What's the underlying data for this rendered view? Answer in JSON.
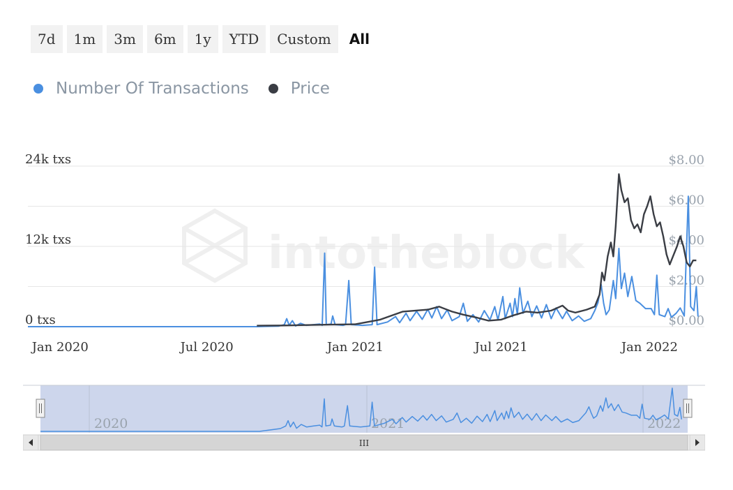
{
  "range_buttons": [
    {
      "label": "7d",
      "active": false
    },
    {
      "label": "1m",
      "active": false
    },
    {
      "label": "3m",
      "active": false
    },
    {
      "label": "6m",
      "active": false
    },
    {
      "label": "1y",
      "active": false
    },
    {
      "label": "YTD",
      "active": false
    },
    {
      "label": "Custom",
      "active": false
    },
    {
      "label": "All",
      "active": true
    }
  ],
  "watermark": "intotheblock",
  "navigator": {
    "year_labels": [
      "2020",
      "2021",
      "2022"
    ],
    "scroll_grip": "III"
  },
  "chart_data": {
    "type": "line",
    "xlabel": "",
    "ylabel": "",
    "x_ticks": [
      "Jan 2020",
      "Jul 2020",
      "Jan 2021",
      "Jul 2021",
      "Jan 2022"
    ],
    "x_range": [
      "2019-11-22",
      "2022-03-10"
    ],
    "y_left_ticks": [
      "0 txs",
      "12k txs",
      "24k txs"
    ],
    "y_left_range": [
      0,
      24000
    ],
    "y_right_ticks": [
      "$0.00",
      "$2.00",
      "$4.00",
      "$6.00",
      "$8.00"
    ],
    "y_right_range": [
      0,
      8
    ],
    "legend_position": "top-left",
    "grid": true,
    "series": [
      {
        "name": "Number Of Transactions",
        "color": "#4a8fe0",
        "axis": "left",
        "points": [
          [
            "2019-11-22",
            0
          ],
          [
            "2020-09-01",
            0
          ],
          [
            "2020-09-28",
            80
          ],
          [
            "2020-10-05",
            300
          ],
          [
            "2020-10-08",
            1200
          ],
          [
            "2020-10-11",
            200
          ],
          [
            "2020-10-15",
            900
          ],
          [
            "2020-10-19",
            100
          ],
          [
            "2020-10-25",
            500
          ],
          [
            "2020-11-01",
            200
          ],
          [
            "2020-11-10",
            300
          ],
          [
            "2020-11-18",
            400
          ],
          [
            "2020-11-21",
            200
          ],
          [
            "2020-11-24",
            11000
          ],
          [
            "2020-11-26",
            300
          ],
          [
            "2020-12-02",
            400
          ],
          [
            "2020-12-04",
            1600
          ],
          [
            "2020-12-07",
            300
          ],
          [
            "2020-12-17",
            200
          ],
          [
            "2020-12-20",
            300
          ],
          [
            "2020-12-24",
            6900
          ],
          [
            "2020-12-27",
            300
          ],
          [
            "2021-01-10",
            200
          ],
          [
            "2021-01-22",
            300
          ],
          [
            "2021-01-25",
            8900
          ],
          [
            "2021-01-28",
            300
          ],
          [
            "2021-02-10",
            700
          ],
          [
            "2021-02-20",
            1500
          ],
          [
            "2021-02-25",
            600
          ],
          [
            "2021-03-05",
            2000
          ],
          [
            "2021-03-10",
            900
          ],
          [
            "2021-03-18",
            2300
          ],
          [
            "2021-03-25",
            1100
          ],
          [
            "2021-04-01",
            2600
          ],
          [
            "2021-04-06",
            1300
          ],
          [
            "2021-04-12",
            3000
          ],
          [
            "2021-04-18",
            1200
          ],
          [
            "2021-04-25",
            2500
          ],
          [
            "2021-05-01",
            900
          ],
          [
            "2021-05-10",
            1500
          ],
          [
            "2021-05-15",
            3500
          ],
          [
            "2021-05-20",
            800
          ],
          [
            "2021-05-27",
            1800
          ],
          [
            "2021-06-03",
            700
          ],
          [
            "2021-06-10",
            2400
          ],
          [
            "2021-06-17",
            1000
          ],
          [
            "2021-06-23",
            3000
          ],
          [
            "2021-06-27",
            1000
          ],
          [
            "2021-07-03",
            4500
          ],
          [
            "2021-07-06",
            1200
          ],
          [
            "2021-07-12",
            3500
          ],
          [
            "2021-07-15",
            1500
          ],
          [
            "2021-07-18",
            4200
          ],
          [
            "2021-07-21",
            1800
          ],
          [
            "2021-07-24",
            5800
          ],
          [
            "2021-07-28",
            2000
          ],
          [
            "2021-08-03",
            3800
          ],
          [
            "2021-08-08",
            1500
          ],
          [
            "2021-08-14",
            3100
          ],
          [
            "2021-08-20",
            1300
          ],
          [
            "2021-08-26",
            3300
          ],
          [
            "2021-09-01",
            1200
          ],
          [
            "2021-09-07",
            2800
          ],
          [
            "2021-09-15",
            1200
          ],
          [
            "2021-09-20",
            2300
          ],
          [
            "2021-09-27",
            900
          ],
          [
            "2021-10-05",
            1600
          ],
          [
            "2021-10-12",
            800
          ],
          [
            "2021-10-20",
            1200
          ],
          [
            "2021-10-25",
            2400
          ],
          [
            "2021-10-29",
            3600
          ],
          [
            "2021-11-02",
            6300
          ],
          [
            "2021-11-05",
            3500
          ],
          [
            "2021-11-08",
            1800
          ],
          [
            "2021-11-12",
            2500
          ],
          [
            "2021-11-17",
            6900
          ],
          [
            "2021-11-20",
            4200
          ],
          [
            "2021-11-24",
            11700
          ],
          [
            "2021-11-27",
            5700
          ],
          [
            "2021-12-01",
            8000
          ],
          [
            "2021-12-05",
            4500
          ],
          [
            "2021-12-10",
            7500
          ],
          [
            "2021-12-15",
            3900
          ],
          [
            "2021-12-20",
            3500
          ],
          [
            "2021-12-27",
            2700
          ],
          [
            "2022-01-03",
            2700
          ],
          [
            "2022-01-07",
            1800
          ],
          [
            "2022-01-10",
            7700
          ],
          [
            "2022-01-13",
            1800
          ],
          [
            "2022-01-20",
            1500
          ],
          [
            "2022-01-24",
            2700
          ],
          [
            "2022-01-28",
            1400
          ],
          [
            "2022-02-03",
            2000
          ],
          [
            "2022-02-08",
            2800
          ],
          [
            "2022-02-13",
            1600
          ],
          [
            "2022-02-18",
            19500
          ],
          [
            "2022-02-21",
            3000
          ],
          [
            "2022-02-25",
            2400
          ],
          [
            "2022-02-28",
            6000
          ],
          [
            "2022-03-02",
            1500
          ]
        ]
      },
      {
        "name": "Price",
        "color": "#3a3d44",
        "axis": "right",
        "points": [
          [
            "2020-09-01",
            0.05
          ],
          [
            "2020-10-01",
            0.06
          ],
          [
            "2020-11-01",
            0.08
          ],
          [
            "2020-12-01",
            0.1
          ],
          [
            "2021-01-01",
            0.12
          ],
          [
            "2021-02-01",
            0.35
          ],
          [
            "2021-03-01",
            0.75
          ],
          [
            "2021-04-01",
            0.85
          ],
          [
            "2021-04-15",
            1.0
          ],
          [
            "2021-05-01",
            0.75
          ],
          [
            "2021-05-15",
            0.6
          ],
          [
            "2021-06-01",
            0.45
          ],
          [
            "2021-06-15",
            0.3
          ],
          [
            "2021-07-01",
            0.35
          ],
          [
            "2021-07-15",
            0.55
          ],
          [
            "2021-08-01",
            0.75
          ],
          [
            "2021-08-15",
            0.7
          ],
          [
            "2021-09-01",
            0.8
          ],
          [
            "2021-09-15",
            1.05
          ],
          [
            "2021-09-22",
            0.8
          ],
          [
            "2021-10-01",
            0.7
          ],
          [
            "2021-10-15",
            0.85
          ],
          [
            "2021-10-25",
            1.0
          ],
          [
            "2021-10-31",
            1.6
          ],
          [
            "2021-11-03",
            2.7
          ],
          [
            "2021-11-06",
            2.3
          ],
          [
            "2021-11-10",
            3.5
          ],
          [
            "2021-11-14",
            4.2
          ],
          [
            "2021-11-17",
            3.5
          ],
          [
            "2021-11-20",
            5.0
          ],
          [
            "2021-11-24",
            7.6
          ],
          [
            "2021-11-27",
            6.8
          ],
          [
            "2021-12-01",
            6.2
          ],
          [
            "2021-12-05",
            6.4
          ],
          [
            "2021-12-09",
            5.3
          ],
          [
            "2021-12-13",
            4.9
          ],
          [
            "2021-12-17",
            5.1
          ],
          [
            "2021-12-21",
            4.7
          ],
          [
            "2021-12-25",
            5.6
          ],
          [
            "2021-12-29",
            6.0
          ],
          [
            "2022-01-02",
            6.5
          ],
          [
            "2022-01-06",
            5.6
          ],
          [
            "2022-01-10",
            5.0
          ],
          [
            "2022-01-14",
            5.2
          ],
          [
            "2022-01-18",
            4.5
          ],
          [
            "2022-01-22",
            3.6
          ],
          [
            "2022-01-26",
            3.1
          ],
          [
            "2022-01-30",
            3.5
          ],
          [
            "2022-02-04",
            4.0
          ],
          [
            "2022-02-08",
            4.5
          ],
          [
            "2022-02-12",
            4.0
          ],
          [
            "2022-02-16",
            3.2
          ],
          [
            "2022-02-20",
            3.0
          ],
          [
            "2022-02-24",
            3.3
          ],
          [
            "2022-02-28",
            3.3
          ]
        ]
      }
    ]
  }
}
